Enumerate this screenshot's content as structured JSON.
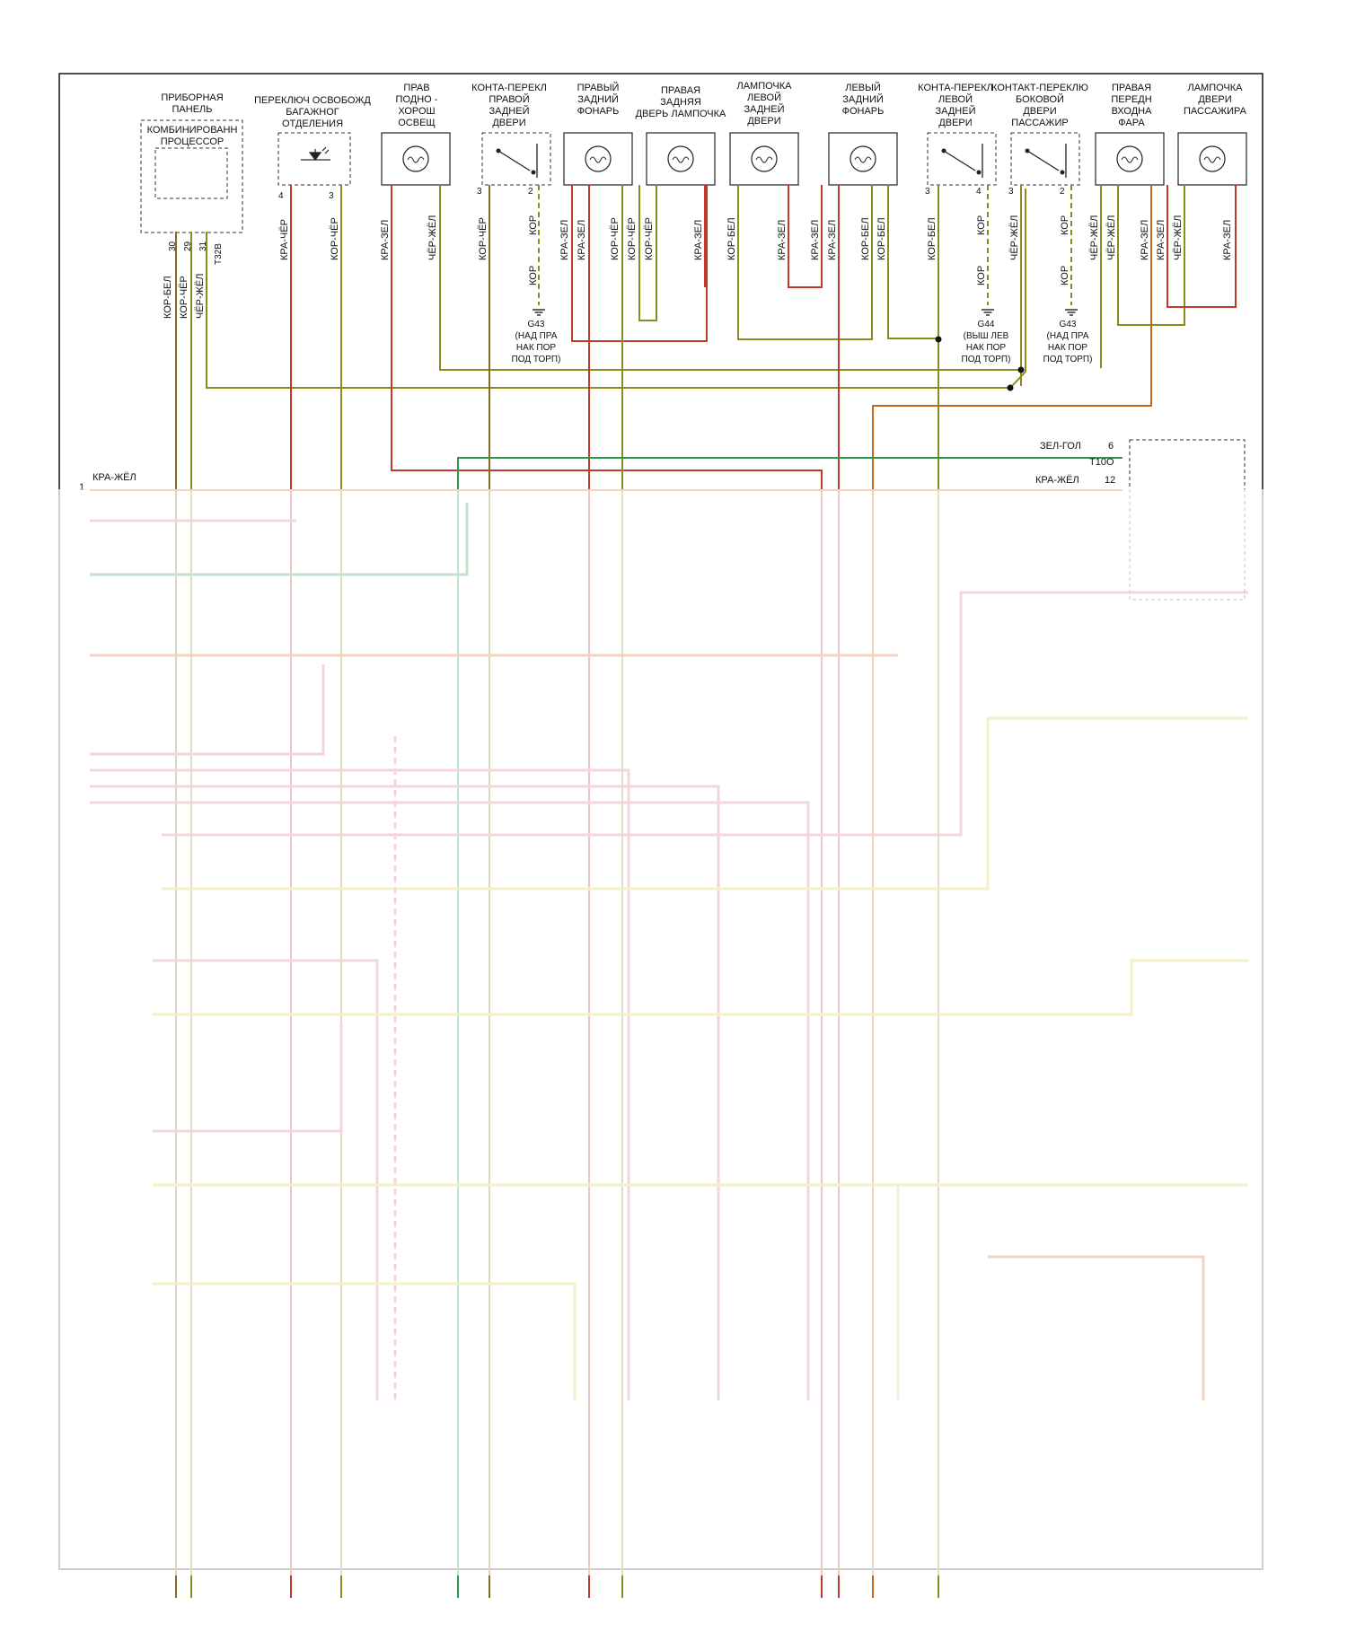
{
  "components": {
    "instrument_panel": {
      "title": [
        "ПРИБОРНАЯ",
        "ПАНЕЛЬ"
      ],
      "inner": [
        "КОМБИНИРОВАНН",
        "ПРОЦЕССОР"
      ]
    },
    "trunk_release": {
      "title": [
        "ПЕРЕКЛЮЧ ОСВОБОЖД",
        "БАГАЖНОГ",
        "ОТДЕЛЕНИЯ"
      ]
    },
    "right_footwell": {
      "title": [
        "ПРАВ",
        "ПОДНО -",
        "ХОРОШ",
        "ОСВЕЩ"
      ]
    },
    "right_rear_door_switch": {
      "title": [
        "КОНТА-ПЕРЕКЛ",
        "ПРАВОЙ",
        "ЗАДНЕЙ",
        "ДВЕРИ"
      ]
    },
    "right_rear_lamp": {
      "title": [
        "ПРАВЫЙ",
        "ЗАДНИЙ",
        "ФОНАРЬ"
      ]
    },
    "right_rear_door_lamp": {
      "title": [
        "ПРАВАЯ",
        "ЗАДНЯЯ",
        "ДВЕРЬ ЛАМПОЧКА"
      ]
    },
    "left_rear_door_lamp": {
      "title": [
        "ЛАМПОЧКА",
        "ЛЕВОЙ",
        "ЗАДНЕЙ",
        "ДВЕРИ"
      ]
    },
    "left_rear_lamp": {
      "title": [
        "ЛЕВЫЙ",
        "ЗАДНИЙ",
        "ФОНАРЬ"
      ]
    },
    "left_rear_door_switch": {
      "title": [
        "КОНТА-ПЕРЕКЛ",
        "ЛЕВОЙ",
        "ЗАДНЕЙ",
        "ДВЕРИ"
      ]
    },
    "passenger_door_switch": {
      "title": [
        "КОНТАКТ-ПЕРЕКЛЮ",
        "БОКОВОЙ",
        "ДВЕРИ",
        "ПАССАЖИР"
      ]
    },
    "right_front_entry_lamp": {
      "title": [
        "ПРАВАЯ",
        "ПЕРЕДН",
        "ВХОДНА",
        "ФАРА"
      ]
    },
    "passenger_door_lamp": {
      "title": [
        "ЛАМПОЧКА",
        "ДВЕРИ",
        "ПАССАЖИРА"
      ]
    }
  },
  "pins": {
    "ip_30": "30",
    "ip_29": "29",
    "ip_31": "31",
    "ip_conn": "T32B",
    "trunk_4": "4",
    "trunk_3": "3",
    "rrds_3": "3",
    "rrds_2": "2",
    "lrds_3": "3",
    "lrds_4": "4",
    "pds_3": "3",
    "pds_2": "2"
  },
  "wires": {
    "ip_30": "КОР-БЕЛ",
    "ip_29": "КОР-ЧЁР",
    "ip_31": "ЧЁР-ЖЁЛ",
    "trunk_4": "КРА-ЧЁР",
    "trunk_3": "КОР-ЧЁР",
    "rfw_1": "КРА-ЗЕЛ",
    "rfw_2": "ЧЁР-ЖЁЛ",
    "rrds_1": "КОР-ЧЁР",
    "rrds_2": "КОР",
    "rrds_g": "КОР",
    "rrl_1": "КРА-ЗЕЛ",
    "rrl_2": "КРА-ЗЕЛ",
    "rrl_3": "КОР-ЧЁР",
    "rrl_4": "КОР-ЧЁР",
    "rrdl_1": "КРА-ЗЕЛ",
    "lrdl_1": "КОР-БЕЛ",
    "lrdl_2": "КРА-ЗЕЛ",
    "lrl_1": "КРА-ЗЕЛ",
    "lrl_2": "КРА-ЗЕЛ",
    "lrl_3": "КОР-БЕЛ",
    "lrl_4": "КОР-БЕЛ",
    "lrds_1": "КОР-БЕЛ",
    "lrds_2": "КОР",
    "lrds_g": "КОР",
    "pds_1": "ЧЁР-ЖЁЛ",
    "pds_2": "КОР",
    "pds_g": "КОР",
    "rfel_1": "ЧЁР-ЖЁЛ",
    "rfel_2": "ЧЁР-ЖЁЛ",
    "rfel_3": "КРА-ЗЕЛ",
    "rfel_4": "КРА-ЗЕЛ",
    "pdl_1": "ЧЁР-ЖЁЛ",
    "pdl_2": "КРА-ЗЕЛ"
  },
  "grounds": {
    "g43a": [
      "G43",
      "(НАД ПРА",
      "НАК ПОР",
      "ПОД ТОРП)"
    ],
    "g44": [
      "G44",
      "(ВЫШ ЛЕВ",
      "НАК ПОР",
      "ПОД ТОРП)"
    ],
    "g43b": [
      "G43",
      "(НАД ПРА",
      "НАК ПОР",
      "ПОД ТОРП)"
    ]
  },
  "bus": {
    "zel_gol": "ЗЕЛ-ГОЛ",
    "zel_gol_pin": "6",
    "conn": "T10O",
    "kra_zhel_right": "КРА-ЖЁЛ",
    "kra_zhel_pin": "12",
    "kra_zhel_left": "КРА-ЖЁЛ",
    "line_no": "1"
  },
  "colors": {
    "red": "#c0392b",
    "orange": "#c8641e",
    "brown": "#8a6a1e",
    "olive": "#8c8c1e",
    "yellow": "#d6c83c",
    "green": "#2a9a4a",
    "pink": "#d46a8a",
    "pale": "#d8c89a"
  }
}
